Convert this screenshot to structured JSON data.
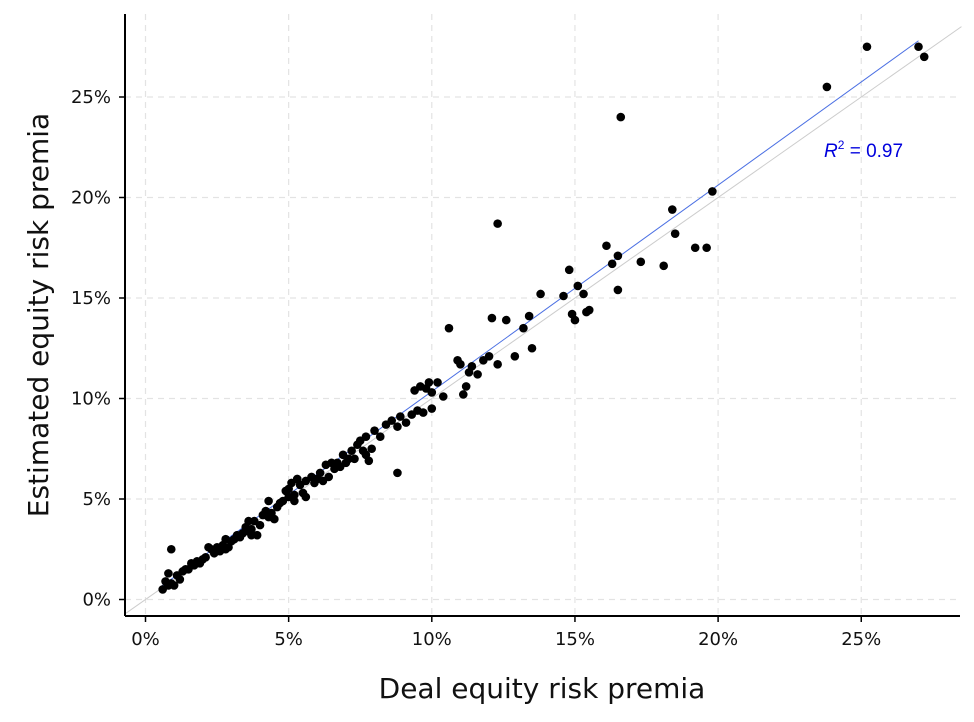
{
  "chart_data": {
    "type": "scatter",
    "xlabel": "Deal equity risk premia",
    "ylabel": "Estimated equity risk premia",
    "xlim": [
      -0.7,
      28.5
    ],
    "ylim": [
      -0.7,
      29.2
    ],
    "x_ticks": [
      0,
      5,
      10,
      15,
      20,
      25
    ],
    "y_ticks": [
      0,
      5,
      10,
      15,
      20,
      25
    ],
    "x_tick_labels": [
      "0%",
      "5%",
      "10%",
      "15%",
      "20%",
      "25%"
    ],
    "y_tick_labels": [
      "0%",
      "5%",
      "10%",
      "15%",
      "20%",
      "25%"
    ],
    "grid": true,
    "fit_line": {
      "x": [
        0.5,
        27
      ],
      "y": [
        0.6,
        27.8
      ],
      "color": "#4a6fe3"
    },
    "identity_line": {
      "color": "#cccccc"
    },
    "annotation": {
      "symbol": "R",
      "superscript": "2",
      "text": " = 0.97",
      "color": "#0000dd",
      "at_x": 23.7,
      "at_y": 22.4
    },
    "points": [
      [
        0.6,
        0.5
      ],
      [
        0.7,
        0.9
      ],
      [
        0.8,
        0.7
      ],
      [
        0.8,
        1.3
      ],
      [
        0.9,
        2.5
      ],
      [
        0.9,
        0.8
      ],
      [
        1.0,
        0.7
      ],
      [
        1.1,
        1.2
      ],
      [
        1.2,
        1.0
      ],
      [
        1.3,
        1.4
      ],
      [
        1.4,
        1.5
      ],
      [
        1.5,
        1.5
      ],
      [
        1.6,
        1.8
      ],
      [
        1.7,
        1.7
      ],
      [
        1.8,
        1.9
      ],
      [
        1.9,
        1.8
      ],
      [
        2.0,
        2.0
      ],
      [
        2.1,
        2.1
      ],
      [
        2.2,
        2.6
      ],
      [
        2.3,
        2.5
      ],
      [
        2.4,
        2.3
      ],
      [
        2.5,
        2.6
      ],
      [
        2.6,
        2.4
      ],
      [
        2.7,
        2.7
      ],
      [
        2.8,
        3.0
      ],
      [
        2.8,
        2.5
      ],
      [
        2.9,
        2.6
      ],
      [
        3.0,
        2.9
      ],
      [
        3.1,
        3.0
      ],
      [
        3.2,
        3.2
      ],
      [
        3.3,
        3.1
      ],
      [
        3.4,
        3.3
      ],
      [
        3.5,
        3.6
      ],
      [
        3.6,
        3.9
      ],
      [
        3.6,
        3.4
      ],
      [
        3.7,
        3.5
      ],
      [
        3.7,
        3.2
      ],
      [
        3.8,
        3.9
      ],
      [
        3.9,
        3.2
      ],
      [
        4.0,
        3.7
      ],
      [
        4.1,
        4.2
      ],
      [
        4.2,
        4.4
      ],
      [
        4.3,
        4.9
      ],
      [
        4.3,
        4.1
      ],
      [
        4.4,
        4.3
      ],
      [
        4.5,
        4.0
      ],
      [
        4.6,
        4.6
      ],
      [
        4.7,
        4.8
      ],
      [
        4.8,
        4.9
      ],
      [
        4.9,
        5.4
      ],
      [
        5.0,
        5.5
      ],
      [
        5.0,
        5.1
      ],
      [
        5.1,
        5.8
      ],
      [
        5.2,
        5.2
      ],
      [
        5.2,
        4.9
      ],
      [
        5.3,
        6.0
      ],
      [
        5.4,
        5.7
      ],
      [
        5.5,
        5.3
      ],
      [
        5.6,
        5.9
      ],
      [
        5.6,
        5.1
      ],
      [
        5.8,
        6.1
      ],
      [
        5.9,
        5.8
      ],
      [
        6.0,
        6.0
      ],
      [
        6.1,
        6.3
      ],
      [
        6.2,
        5.9
      ],
      [
        6.3,
        6.7
      ],
      [
        6.4,
        6.1
      ],
      [
        6.5,
        6.8
      ],
      [
        6.6,
        6.5
      ],
      [
        6.7,
        6.8
      ],
      [
        6.8,
        6.6
      ],
      [
        6.9,
        7.2
      ],
      [
        7.0,
        6.8
      ],
      [
        7.1,
        7.0
      ],
      [
        7.2,
        7.4
      ],
      [
        7.3,
        7.0
      ],
      [
        7.4,
        7.7
      ],
      [
        7.5,
        7.9
      ],
      [
        7.6,
        7.4
      ],
      [
        7.7,
        8.1
      ],
      [
        7.7,
        7.2
      ],
      [
        7.8,
        6.9
      ],
      [
        7.9,
        7.5
      ],
      [
        8.0,
        8.4
      ],
      [
        8.2,
        8.1
      ],
      [
        8.4,
        8.7
      ],
      [
        8.6,
        8.9
      ],
      [
        8.8,
        8.6
      ],
      [
        8.9,
        9.1
      ],
      [
        9.1,
        8.8
      ],
      [
        9.3,
        9.2
      ],
      [
        9.4,
        10.4
      ],
      [
        9.5,
        9.4
      ],
      [
        9.6,
        10.6
      ],
      [
        9.7,
        9.3
      ],
      [
        9.8,
        10.5
      ],
      [
        9.9,
        10.8
      ],
      [
        10.0,
        10.3
      ],
      [
        10.0,
        9.5
      ],
      [
        10.2,
        10.8
      ],
      [
        10.4,
        10.1
      ],
      [
        10.6,
        13.5
      ],
      [
        10.9,
        11.9
      ],
      [
        11.0,
        11.7
      ],
      [
        11.1,
        10.2
      ],
      [
        11.2,
        10.6
      ],
      [
        11.3,
        11.3
      ],
      [
        11.4,
        11.6
      ],
      [
        11.6,
        11.2
      ],
      [
        11.8,
        11.9
      ],
      [
        12.0,
        12.1
      ],
      [
        12.1,
        14.0
      ],
      [
        12.3,
        11.7
      ],
      [
        12.3,
        18.7
      ],
      [
        12.6,
        13.9
      ],
      [
        12.9,
        12.1
      ],
      [
        13.2,
        13.5
      ],
      [
        13.4,
        14.1
      ],
      [
        13.5,
        12.5
      ],
      [
        13.8,
        15.2
      ],
      [
        14.6,
        15.1
      ],
      [
        14.8,
        16.4
      ],
      [
        14.9,
        14.2
      ],
      [
        15.0,
        13.9
      ],
      [
        15.1,
        15.6
      ],
      [
        15.3,
        15.2
      ],
      [
        15.4,
        14.3
      ],
      [
        15.5,
        14.4
      ],
      [
        16.1,
        17.6
      ],
      [
        16.3,
        16.7
      ],
      [
        16.5,
        17.1
      ],
      [
        16.5,
        15.4
      ],
      [
        16.6,
        24.0
      ],
      [
        17.3,
        16.8
      ],
      [
        18.1,
        16.6
      ],
      [
        18.4,
        19.4
      ],
      [
        18.5,
        18.2
      ],
      [
        19.2,
        17.5
      ],
      [
        19.6,
        17.5
      ],
      [
        19.8,
        20.3
      ],
      [
        23.8,
        25.5
      ],
      [
        25.2,
        27.5
      ],
      [
        27.0,
        27.5
      ],
      [
        27.2,
        27.0
      ],
      [
        8.8,
        6.3
      ]
    ]
  }
}
